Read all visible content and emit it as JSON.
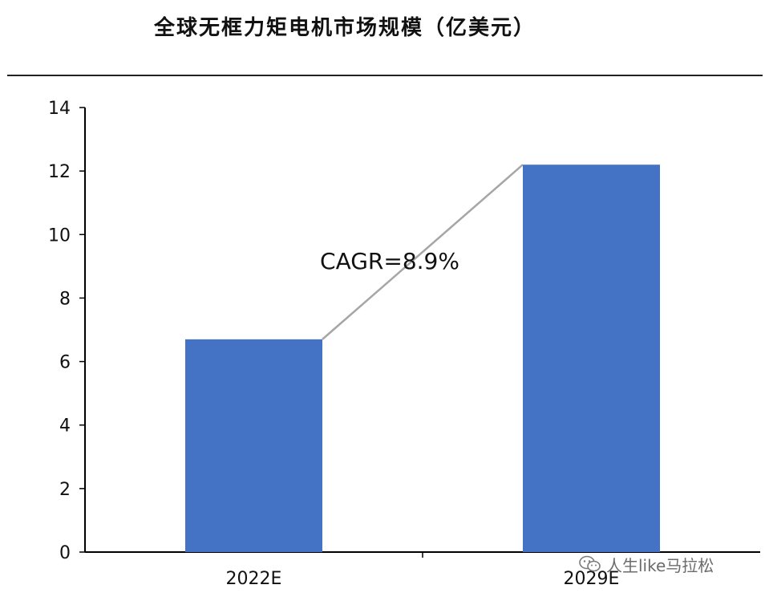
{
  "chart_data": {
    "type": "bar",
    "title": "全球无框力矩电机市场规模（亿美元）",
    "xlabel": "",
    "ylabel": "",
    "categories": [
      "2022E",
      "2029E"
    ],
    "values": [
      6.7,
      12.2
    ],
    "ylim": [
      0,
      14
    ],
    "yticks": [
      0,
      2,
      4,
      6,
      8,
      10,
      12,
      14
    ],
    "bar_color": "#4472C4",
    "connector_color": "#A6A6A6",
    "annotation": "CAGR=8.9%",
    "grid": false,
    "legend": "none"
  },
  "watermark": {
    "icon": "wechat-icon",
    "text": "人生like马拉松"
  }
}
